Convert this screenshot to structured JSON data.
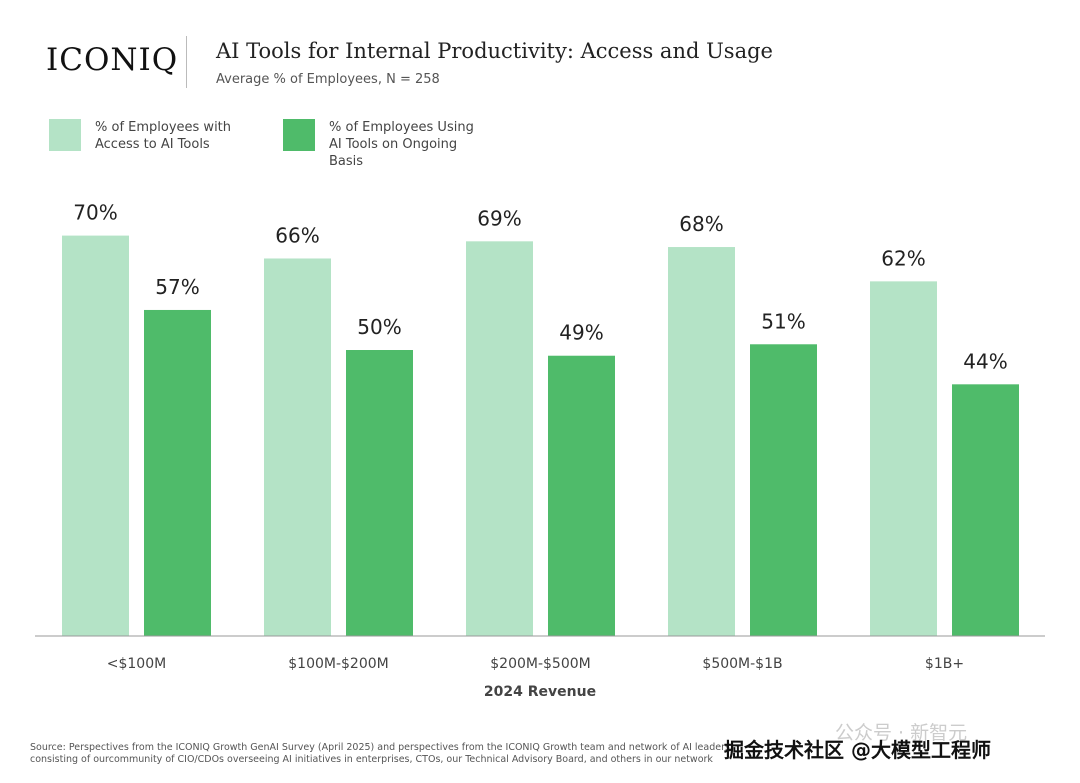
{
  "logo": "ICONIQ",
  "chart_data": {
    "type": "bar",
    "title": "AI Tools for Internal Productivity: Access and Usage",
    "subtitle": "Average % of Employees, N = 258",
    "x_label": "2024 Revenue",
    "categories": [
      "<$100M",
      "$100M-$200M",
      "$200M-$500M",
      "$500M-$1B",
      "$1B+"
    ],
    "series": [
      {
        "name": "% of Employees with Access to AI Tools",
        "color": "#b4e3c6",
        "values": [
          70,
          66,
          69,
          68,
          62
        ],
        "value_labels": [
          "70%",
          "66%",
          "69%",
          "68%",
          "62%"
        ]
      },
      {
        "name": "% of Employees Using AI Tools on Ongoing Basis",
        "color": "#4fbb6a",
        "values": [
          57,
          50,
          49,
          51,
          44
        ],
        "value_labels": [
          "57%",
          "50%",
          "49%",
          "51%",
          "44%"
        ]
      }
    ],
    "source": "Source: Perspectives from the ICONIQ Growth GenAI Survey (April 2025) and perspectives from the ICONIQ Growth team and network of AI leaders consisting of ourcommunity of CIO/CDOs overseeing AI initiatives in enterprises, CTOs, our Technical Advisory Board, and others in our network"
  },
  "watermark": {
    "faint": "公众号 · 新智元",
    "main": "掘金技术社区 @大模型工程师"
  }
}
